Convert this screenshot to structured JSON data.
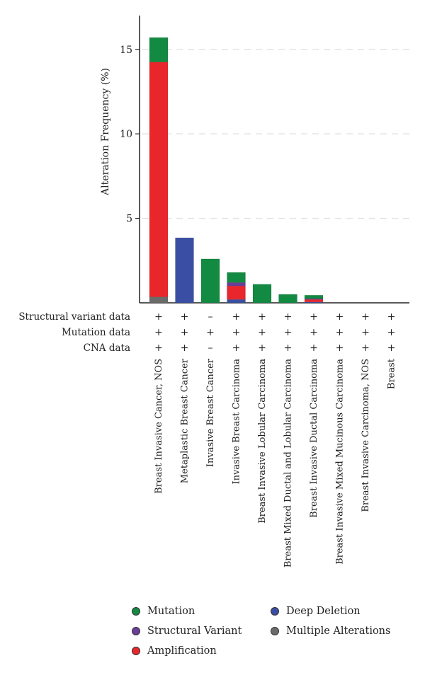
{
  "chart_data": {
    "type": "bar",
    "stacked": true,
    "ylabel": "Alteration Frequency (%)",
    "ylim": [
      0,
      17
    ],
    "yticks": [
      5,
      10,
      15
    ],
    "grid": "horizontal dashed",
    "categories": [
      "Breast Invasive Cancer, NOS",
      "Metaplastic Breast Cancer",
      "Invasive Breast Cancer",
      "Invasive Breast Carcinoma",
      "Breast Invasive Lobular Carcinoma",
      "Breast Mixed Ductal and Lobular Carcinoma",
      "Breast Invasive Ductal Carcinoma",
      "Breast Invasive Mixed Mucinous Carcinoma",
      "Breast Invasive Carcinoma, NOS",
      "Breast"
    ],
    "series": [
      {
        "name": "Multiple Alterations",
        "color": "#6b6b6b",
        "values": [
          0.35,
          0,
          0,
          0,
          0,
          0,
          0,
          0,
          0,
          0
        ]
      },
      {
        "name": "Deep Deletion",
        "color": "#3a4fa3",
        "values": [
          0,
          3.85,
          0,
          0.2,
          0,
          0,
          0.05,
          0,
          0,
          0
        ]
      },
      {
        "name": "Amplification",
        "color": "#e8262b",
        "values": [
          13.9,
          0,
          0,
          0.8,
          0,
          0,
          0.15,
          0,
          0,
          0
        ]
      },
      {
        "name": "Structural Variant",
        "color": "#6a3e98",
        "values": [
          0,
          0,
          0,
          0.2,
          0,
          0,
          0.05,
          0,
          0,
          0
        ]
      },
      {
        "name": "Mutation",
        "color": "#138a42",
        "values": [
          1.45,
          0,
          2.6,
          0.6,
          1.1,
          0.5,
          0.2,
          0,
          0,
          0
        ]
      }
    ],
    "profile_rows": [
      {
        "label": "Structural variant data",
        "marks": [
          "+",
          "+",
          "–",
          "+",
          "+",
          "+",
          "+",
          "+",
          "+",
          "+"
        ]
      },
      {
        "label": "Mutation data",
        "marks": [
          "+",
          "+",
          "+",
          "+",
          "+",
          "+",
          "+",
          "+",
          "+",
          "+"
        ]
      },
      {
        "label": "CNA data",
        "marks": [
          "+",
          "+",
          "–",
          "+",
          "+",
          "+",
          "+",
          "+",
          "+",
          "+"
        ]
      }
    ],
    "legend": [
      {
        "name": "Mutation",
        "color": "#138a42"
      },
      {
        "name": "Deep Deletion",
        "color": "#3a4fa3"
      },
      {
        "name": "Structural Variant",
        "color": "#6a3e98"
      },
      {
        "name": "Multiple Alterations",
        "color": "#6b6b6b"
      },
      {
        "name": "Amplification",
        "color": "#e8262b"
      }
    ],
    "legend_position": "bottom"
  }
}
